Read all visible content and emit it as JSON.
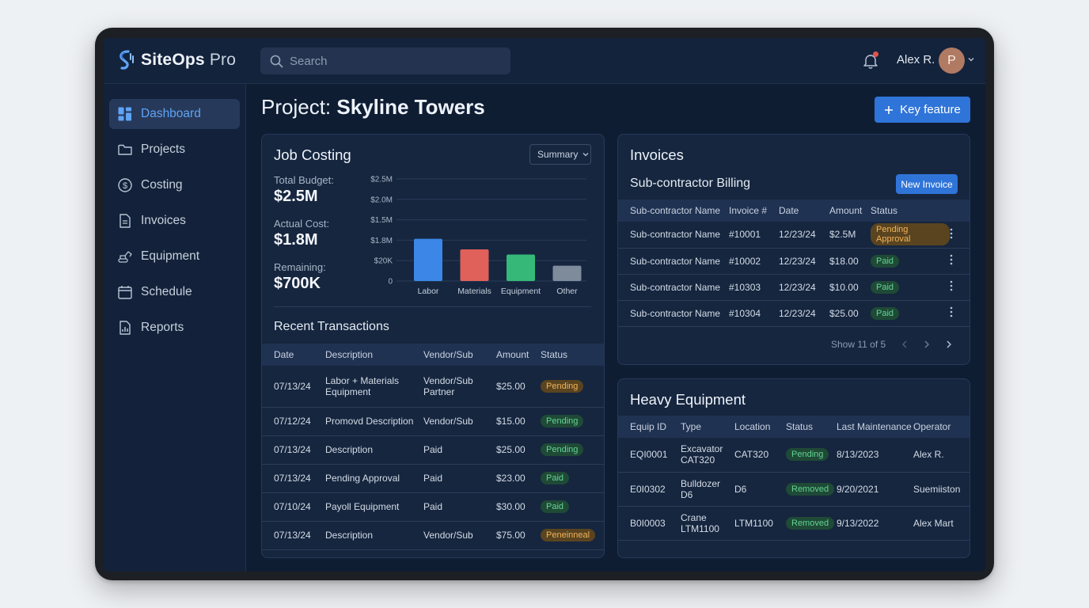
{
  "app": {
    "brand_bold": "SiteOps",
    "brand_light": "Pro",
    "accent": "#2f74d8"
  },
  "topbar": {
    "search_placeholder": "Search",
    "user_name": "Alex R.",
    "avatar_initial": "P"
  },
  "sidebar": {
    "items": [
      {
        "label": "Dashboard",
        "icon": "dashboard-icon",
        "active": true
      },
      {
        "label": "Projects",
        "icon": "folder-icon"
      },
      {
        "label": "Costing",
        "icon": "dollar-icon"
      },
      {
        "label": "Invoices",
        "icon": "document-icon"
      },
      {
        "label": "Equipment",
        "icon": "excavator-icon"
      },
      {
        "label": "Schedule",
        "icon": "calendar-icon"
      },
      {
        "label": "Reports",
        "icon": "report-icon"
      }
    ]
  },
  "page": {
    "title_prefix": "Project:",
    "title_name": "Skyline Towers",
    "key_feature_label": "Key feature"
  },
  "job_costing": {
    "title": "Job Costing",
    "dropdown_value": "Summary",
    "stats": [
      {
        "label": "Total Budget:",
        "value": "$2.5M"
      },
      {
        "label": "Actual Cost:",
        "value": "$1.8M"
      },
      {
        "label": "Remaining:",
        "value": "$700K"
      }
    ],
    "recent_title": "Recent Transactions",
    "columns": [
      "Date",
      "Description",
      "Vendor/Sub",
      "Amount",
      "Status"
    ],
    "rows": [
      {
        "date": "07/13/24",
        "desc": "Labor + Materials Equipment",
        "vendor": "Vendor/Sub Partner",
        "amount": "$25.00",
        "status": "Pending",
        "status_style": "amber"
      },
      {
        "date": "07/12/24",
        "desc": "Promovd Description",
        "vendor": "Vendor/Sub",
        "amount": "$15.00",
        "status": "Pending",
        "status_style": "green"
      },
      {
        "date": "07/13/24",
        "desc": "Description",
        "vendor": "Paid",
        "amount": "$25.00",
        "status": "Pending",
        "status_style": "green"
      },
      {
        "date": "07/13/24",
        "desc": "Pending Approval",
        "vendor": "Paid",
        "amount": "$23.00",
        "status": "Paid",
        "status_style": "green"
      },
      {
        "date": "07/10/24",
        "desc": "Payoll Equipment",
        "vendor": "Paid",
        "amount": "$30.00",
        "status": "Paid",
        "status_style": "green"
      },
      {
        "date": "07/13/24",
        "desc": "Description",
        "vendor": "Vendor/Sub",
        "amount": "$75.00",
        "status": "Peneinneal",
        "status_style": "amber"
      }
    ]
  },
  "chart_data": {
    "type": "bar",
    "categories": [
      "Labor",
      "Materials",
      "Equipment",
      "Other"
    ],
    "values": [
      2.07,
      1.55,
      1.3,
      0.75
    ],
    "value_units": "axis tick index (0 = 0, 1 = $20K, 2 = $1.8M, 3 = $1.5M, 4 = $2.0M, 5 = $2.5M)",
    "ytick_labels": [
      "0",
      "$20K",
      "$1.8M",
      "$1.5M",
      "$2.0M",
      "$2.5M"
    ],
    "colors": [
      "#3b86e6",
      "#e0605a",
      "#35b878",
      "#7d8b9b"
    ],
    "grid": true
  },
  "invoices": {
    "title": "Invoices",
    "subtitle": "Sub-contractor Billing",
    "new_button": "New Invoice",
    "columns": [
      "Sub-contractor Name",
      "Invoice #",
      "Date",
      "Amount",
      "Status"
    ],
    "rows": [
      {
        "name": "Sub-contractor Name",
        "invoice": "#10001",
        "date": "12/23/24",
        "amount": "$2.5M",
        "status": "Pending Approval",
        "status_style": "amber"
      },
      {
        "name": "Sub-contractor Name",
        "invoice": "#10002",
        "date": "12/23/24",
        "amount": "$18.00",
        "status": "Paid",
        "status_style": "green"
      },
      {
        "name": "Sub-contractor Name",
        "invoice": "#10303",
        "date": "12/23/24",
        "amount": "$10.00",
        "status": "Paid",
        "status_style": "green"
      },
      {
        "name": "Sub-contractor Name",
        "invoice": "#10304",
        "date": "12/23/24",
        "amount": "$25.00",
        "status": "Paid",
        "status_style": "green"
      }
    ],
    "pager_text": "Show 11 of 5"
  },
  "equipment": {
    "title": "Heavy Equipment",
    "columns": [
      "Equip ID",
      "Type",
      "Location",
      "Status",
      "Last Maintenance",
      "Operator"
    ],
    "rows": [
      {
        "id": "EQI0001",
        "type": "Excavator CAT320",
        "location": "CAT320",
        "status": "Pending",
        "maintenance": "8/13/2023",
        "operator": "Alex R."
      },
      {
        "id": "E0I0302",
        "type": "Bulldozer D6",
        "location": "D6",
        "status": "Removed",
        "maintenance": "9/20/2021",
        "operator": "Suemiiston"
      },
      {
        "id": "B0I0003",
        "type": "Crane LTM1100",
        "location": "LTM1100",
        "status": "Removed",
        "maintenance": "9/13/2022",
        "operator": "Alex Mart"
      }
    ]
  }
}
